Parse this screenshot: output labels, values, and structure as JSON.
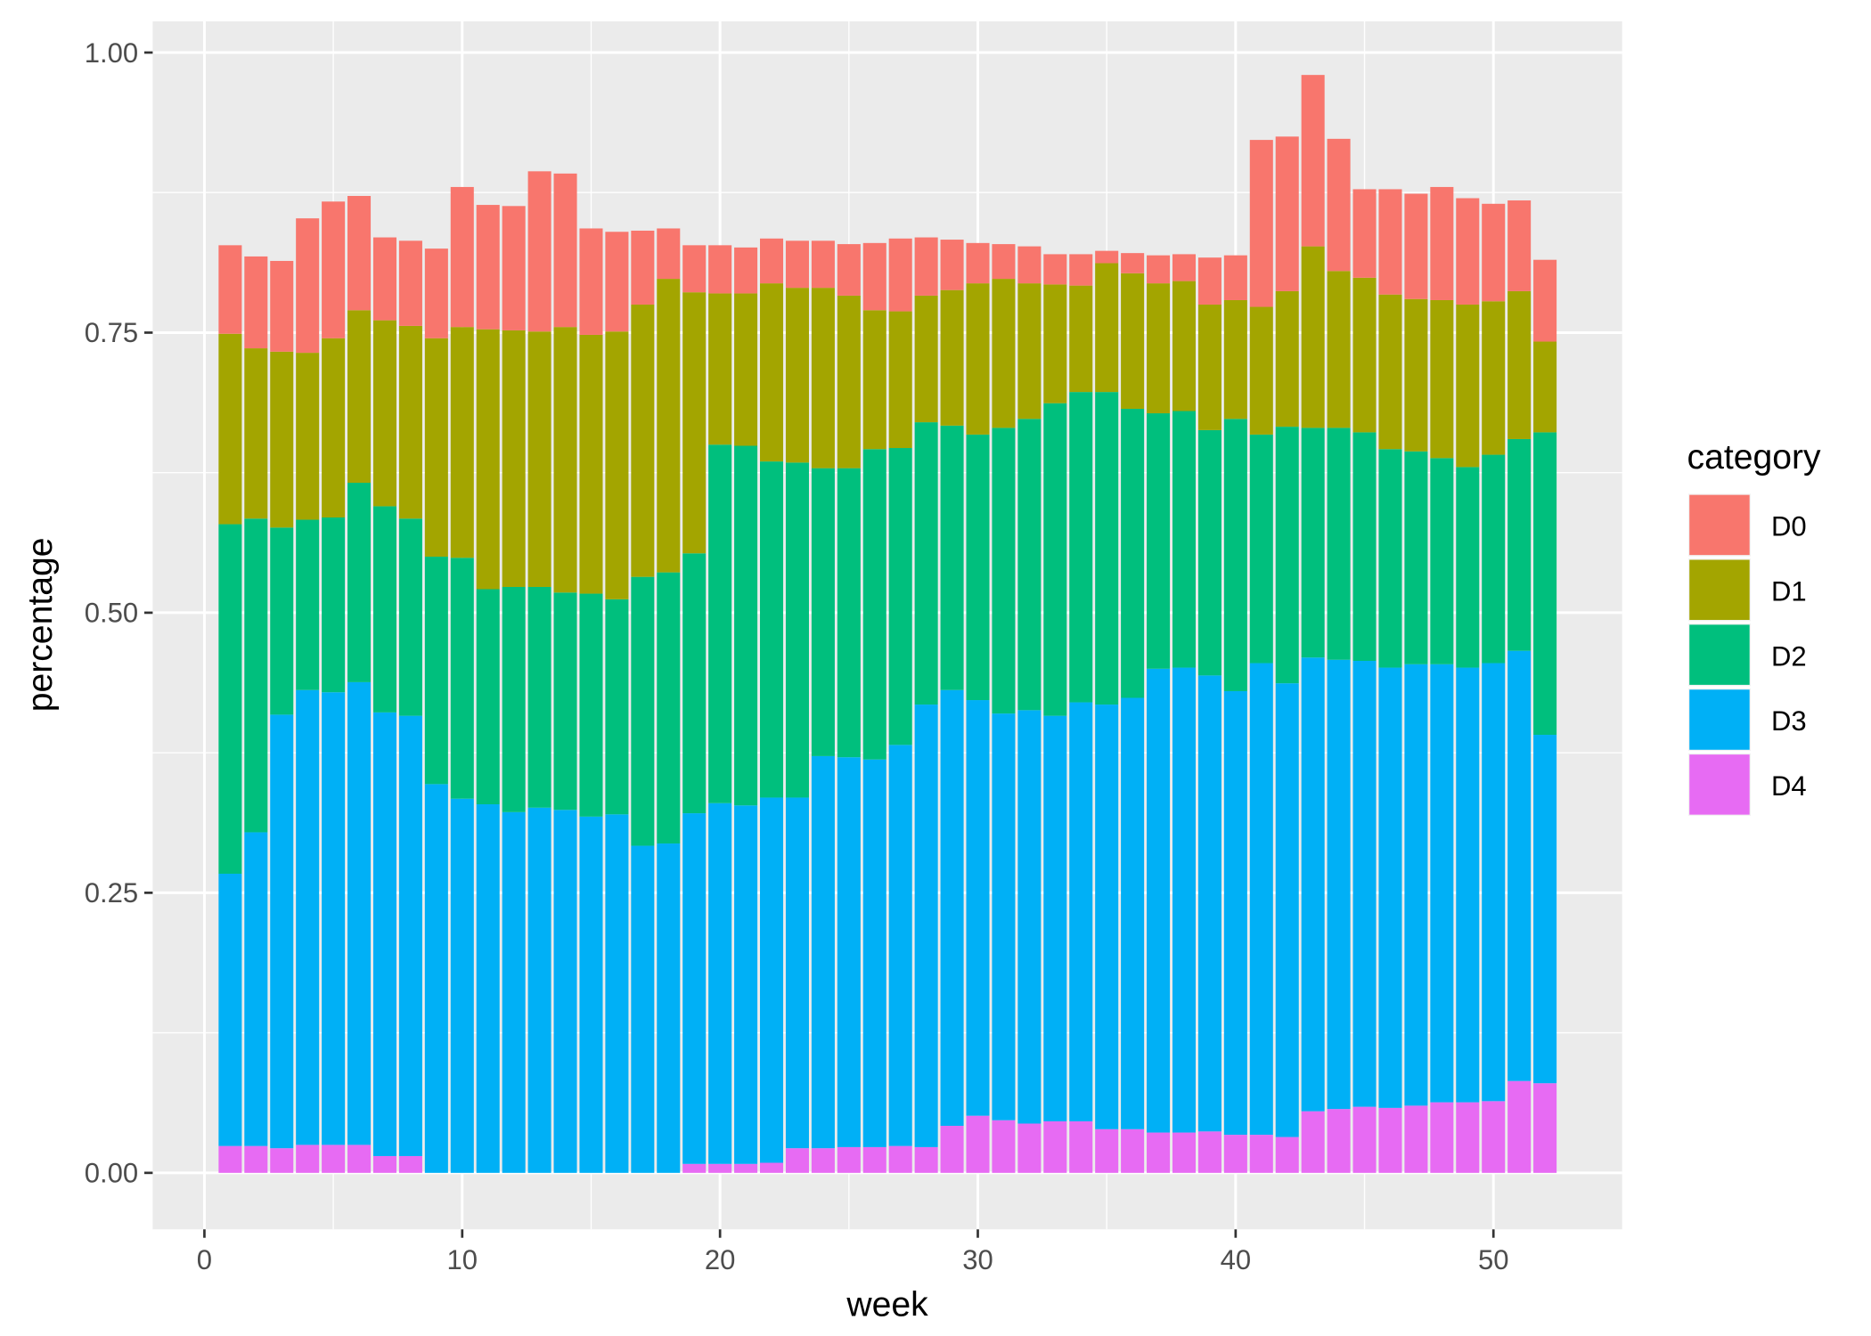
{
  "chart_data": {
    "type": "bar",
    "stacked": true,
    "xlabel": "week",
    "ylabel": "percentage",
    "xlim": [
      -0.5,
      56.5
    ],
    "ylim": [
      -0.05,
      1.02
    ],
    "x_ticks": [
      0,
      10,
      20,
      30,
      40,
      50
    ],
    "y_ticks": [
      0,
      0.25,
      0.5,
      0.75,
      1.0
    ],
    "y_tick_labels": [
      "0.00",
      "0.25",
      "0.50",
      "0.75",
      "1.00"
    ],
    "grid": true,
    "legend": {
      "title": "category",
      "placement": "right"
    },
    "x": [
      1,
      2,
      3,
      4,
      5,
      6,
      7,
      8,
      9,
      10,
      11,
      12,
      13,
      14,
      15,
      16,
      17,
      18,
      19,
      20,
      21,
      22,
      23,
      24,
      25,
      26,
      27,
      28,
      29,
      30,
      31,
      32,
      33,
      34,
      35,
      36,
      37,
      38,
      39,
      40,
      41,
      42,
      43,
      44,
      45,
      46,
      47,
      48,
      49,
      50,
      51,
      52
    ],
    "series": [
      {
        "name": "D4",
        "color": "#E76BF3",
        "values": [
          0.024,
          0.024,
          0.022,
          0.025,
          0.025,
          0.025,
          0.015,
          0.015,
          0,
          0,
          0,
          0,
          0,
          0,
          0,
          0,
          0,
          0,
          0.008,
          0.008,
          0.008,
          0.009,
          0.022,
          0.022,
          0.023,
          0.023,
          0.024,
          0.023,
          0.042,
          0.051,
          0.047,
          0.044,
          0.046,
          0.046,
          0.039,
          0.039,
          0.036,
          0.036,
          0.037,
          0.034,
          0.034,
          0.032,
          0.055,
          0.057,
          0.059,
          0.058,
          0.06,
          0.063,
          0.063,
          0.064,
          0.082,
          0.08
        ]
      },
      {
        "name": "D3",
        "color": "#00B0F6",
        "values": [
          0.243,
          0.28,
          0.387,
          0.406,
          0.404,
          0.413,
          0.396,
          0.393,
          0.347,
          0.334,
          0.329,
          0.322,
          0.326,
          0.324,
          0.318,
          0.32,
          0.292,
          0.294,
          0.313,
          0.322,
          0.32,
          0.326,
          0.313,
          0.35,
          0.348,
          0.346,
          0.358,
          0.395,
          0.389,
          0.371,
          0.363,
          0.369,
          0.362,
          0.374,
          0.379,
          0.385,
          0.414,
          0.415,
          0.407,
          0.396,
          0.421,
          0.405,
          0.405,
          0.401,
          0.398,
          0.393,
          0.394,
          0.391,
          0.388,
          0.391,
          0.384,
          0.311
        ]
      },
      {
        "name": "D2",
        "color": "#00BF7D",
        "values": [
          0.312,
          0.28,
          0.167,
          0.152,
          0.156,
          0.178,
          0.184,
          0.176,
          0.203,
          0.215,
          0.192,
          0.201,
          0.197,
          0.194,
          0.199,
          0.192,
          0.24,
          0.242,
          0.232,
          0.32,
          0.321,
          0.3,
          0.299,
          0.257,
          0.258,
          0.277,
          0.265,
          0.252,
          0.236,
          0.237,
          0.255,
          0.26,
          0.279,
          0.277,
          0.279,
          0.258,
          0.228,
          0.229,
          0.219,
          0.243,
          0.204,
          0.229,
          0.205,
          0.207,
          0.204,
          0.195,
          0.19,
          0.184,
          0.179,
          0.186,
          0.189,
          0.27
        ]
      },
      {
        "name": "D1",
        "color": "#A3A500",
        "values": [
          0.17,
          0.152,
          0.157,
          0.149,
          0.16,
          0.154,
          0.166,
          0.172,
          0.195,
          0.206,
          0.232,
          0.229,
          0.228,
          0.237,
          0.231,
          0.239,
          0.243,
          0.262,
          0.233,
          0.135,
          0.136,
          0.159,
          0.156,
          0.161,
          0.154,
          0.124,
          0.122,
          0.113,
          0.121,
          0.135,
          0.133,
          0.121,
          0.106,
          0.095,
          0.115,
          0.121,
          0.116,
          0.116,
          0.112,
          0.106,
          0.114,
          0.121,
          0.162,
          0.14,
          0.138,
          0.138,
          0.136,
          0.141,
          0.145,
          0.137,
          0.132,
          0.081
        ]
      },
      {
        "name": "D0",
        "color": "#F8766D",
        "values": [
          0.079,
          0.082,
          0.081,
          0.12,
          0.122,
          0.102,
          0.074,
          0.076,
          0.08,
          0.125,
          0.111,
          0.111,
          0.143,
          0.137,
          0.095,
          0.089,
          0.066,
          0.045,
          0.042,
          0.043,
          0.041,
          0.04,
          0.042,
          0.042,
          0.046,
          0.06,
          0.065,
          0.052,
          0.045,
          0.036,
          0.031,
          0.033,
          0.027,
          0.028,
          0.011,
          0.018,
          0.025,
          0.024,
          0.042,
          0.04,
          0.149,
          0.138,
          0.153,
          0.118,
          0.079,
          0.094,
          0.094,
          0.101,
          0.095,
          0.087,
          0.081,
          0.073
        ]
      }
    ],
    "legend_order": [
      "D0",
      "D1",
      "D2",
      "D3",
      "D4"
    ]
  }
}
